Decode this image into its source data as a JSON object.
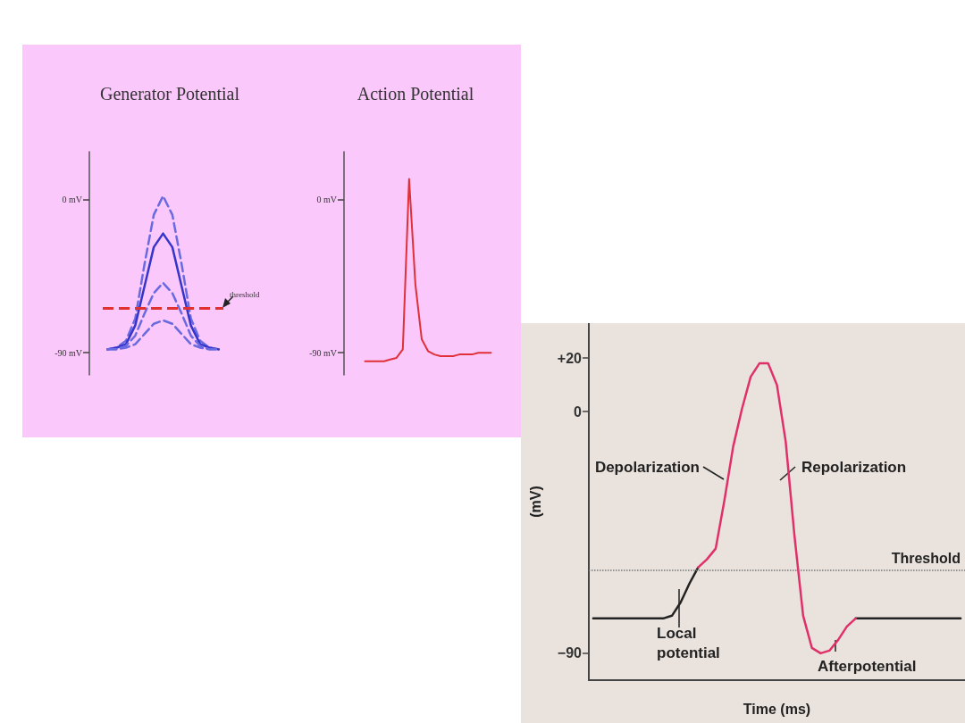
{
  "chart_data": [
    {
      "type": "line",
      "title": "Generator Potential",
      "categories": [
        null,
        null,
        null,
        null,
        null,
        null,
        null,
        null,
        null,
        null,
        null,
        null,
        null
      ],
      "series": [
        {
          "color": "#6a6ae0",
          "line_style": "dashed",
          "values": [
            -88,
            -87,
            -83,
            -70,
            -38,
            -9,
            2,
            -9,
            -38,
            -70,
            -83,
            -87,
            -88
          ]
        },
        {
          "color": "#3535cc",
          "line_style": "solid",
          "values": [
            -88,
            -87,
            -85,
            -74,
            -51,
            -28,
            -20,
            -28,
            -51,
            -74,
            -85,
            -87,
            -88
          ]
        },
        {
          "color": "#6a6ae0",
          "line_style": "dashed",
          "values": [
            -88,
            -88,
            -86,
            -80,
            -67,
            -55,
            -49,
            -55,
            -67,
            -80,
            -86,
            -88,
            -88
          ]
        },
        {
          "color": "#6a6ae0",
          "line_style": "dashed",
          "values": [
            -88,
            -88,
            -87,
            -85,
            -79,
            -73,
            -71,
            -73,
            -79,
            -85,
            -87,
            -88,
            -88
          ]
        }
      ],
      "ylim": [
        -103,
        28
      ],
      "yticks": [
        {
          "value": 0,
          "label": "0 mV"
        },
        {
          "value": -90,
          "label": "-90 mV"
        }
      ],
      "tick_labels": "y",
      "ref_lines": [
        {
          "axis": "y",
          "value": -64,
          "label": "threshold",
          "color": "#e03030",
          "line_style": "dashed"
        }
      ]
    },
    {
      "type": "line",
      "title": "Action Potential",
      "categories": [
        null,
        null,
        null,
        null,
        null,
        null,
        null,
        null,
        null,
        null,
        null,
        null,
        null,
        null,
        null,
        null,
        null,
        null,
        null,
        null,
        null
      ],
      "series": [
        {
          "color": "#e0303a",
          "line_style": "solid",
          "values": [
            -95,
            -95,
            -95,
            -95,
            -94,
            -93,
            -88,
            12,
            -50,
            -82,
            -89,
            -91,
            -92,
            -92,
            -92,
            -91,
            -91,
            -91,
            -90,
            -90,
            -90
          ]
        }
      ],
      "ylim": [
        -103,
        28
      ],
      "yticks": [
        {
          "value": 0,
          "label": "0 mV"
        },
        {
          "value": -90,
          "label": "-90 mV"
        }
      ],
      "tick_labels": "y"
    },
    {
      "type": "line",
      "xlabel": "Time (ms)",
      "ylabel": "(mV)",
      "categories": [
        null,
        null,
        null,
        null,
        null,
        null,
        null,
        null,
        null,
        null,
        null,
        null,
        null,
        null,
        null,
        null,
        null,
        null,
        null,
        null,
        null,
        null,
        null,
        null,
        null,
        null,
        null,
        null,
        null,
        null,
        null,
        null,
        null,
        null,
        null,
        null,
        null,
        null,
        null,
        null,
        null,
        null,
        null
      ],
      "series": [
        {
          "color": "#222222",
          "line_style": "solid",
          "values": [
            -77,
            -77,
            -77,
            -77,
            -77,
            -77,
            -77,
            -77,
            -77,
            -76,
            -71,
            -64,
            -58,
            null,
            null,
            null,
            null,
            null,
            null,
            null,
            null,
            null,
            null,
            null,
            null,
            null,
            null,
            null,
            null,
            null,
            -77,
            -77,
            -77,
            -77,
            -77,
            -77,
            -77,
            -77,
            -77,
            -77,
            -77,
            -77,
            -77
          ]
        },
        {
          "color": "#e0306a",
          "line_style": "solid",
          "values": [
            null,
            null,
            null,
            null,
            null,
            null,
            null,
            null,
            null,
            null,
            null,
            null,
            -58,
            -55,
            -51,
            -33,
            -13,
            1,
            13,
            18,
            18,
            10,
            -11,
            -46,
            -76,
            -88,
            -90,
            -89,
            -85,
            -80,
            -77,
            null,
            null,
            null,
            null,
            null,
            null,
            null,
            null,
            null,
            null,
            null,
            null
          ]
        }
      ],
      "ylim": [
        -100,
        33
      ],
      "yticks": [
        {
          "value": 20,
          "label": "+20"
        },
        0,
        {
          "value": -90,
          "label": "−90"
        }
      ],
      "tick_labels": "y",
      "ref_lines": [
        {
          "axis": "y",
          "value": -59,
          "label": "Threshold",
          "color": "#777777",
          "line_style": "dotted"
        }
      ],
      "annotations": [
        "Depolarization",
        "Repolarization",
        "Local potential",
        "Afterpotential"
      ]
    }
  ]
}
